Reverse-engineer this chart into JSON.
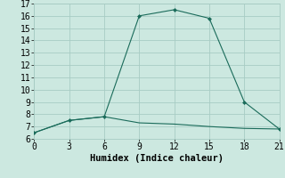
{
  "line1_x": [
    0,
    3,
    6,
    9,
    12,
    15,
    18,
    21
  ],
  "line1_y": [
    6.5,
    7.5,
    7.8,
    16.0,
    16.5,
    15.8,
    9.0,
    6.8
  ],
  "line2_x": [
    0,
    3,
    6,
    9,
    12,
    15,
    18,
    21
  ],
  "line2_y": [
    6.5,
    7.5,
    7.8,
    7.3,
    7.2,
    7.0,
    6.85,
    6.8
  ],
  "line_color": "#1a6b5a",
  "bg_color": "#cce8e0",
  "grid_color": "#a8ccc4",
  "xlabel": "Humidex (Indice chaleur)",
  "xlim": [
    0,
    21
  ],
  "ylim": [
    6,
    17
  ],
  "xticks": [
    0,
    3,
    6,
    9,
    12,
    15,
    18,
    21
  ],
  "yticks": [
    6,
    7,
    8,
    9,
    10,
    11,
    12,
    13,
    14,
    15,
    16,
    17
  ],
  "xlabel_fontsize": 7.5,
  "tick_fontsize": 7
}
